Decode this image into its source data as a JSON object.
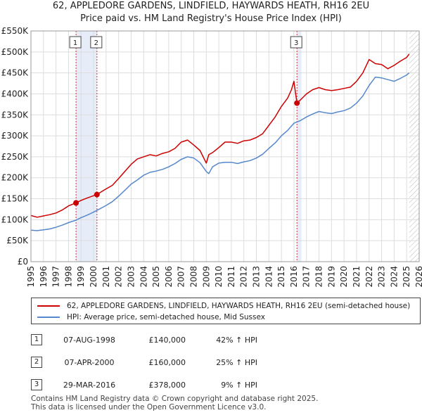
{
  "chart_data": {
    "type": "line",
    "title": "62, APPLEDORE GARDENS, LINDFIELD, HAYWARDS HEATH, RH16 2EU",
    "subtitle": "Price paid vs. HM Land Registry's House Price Index (HPI)",
    "xlabel": "",
    "ylabel": "",
    "xlim": [
      1995,
      2026
    ],
    "ylim": [
      0,
      550000
    ],
    "x_ticks": [
      1995,
      1996,
      1997,
      1998,
      1999,
      2000,
      2001,
      2002,
      2003,
      2004,
      2005,
      2006,
      2007,
      2008,
      2009,
      2010,
      2011,
      2012,
      2013,
      2014,
      2015,
      2016,
      2017,
      2018,
      2019,
      2020,
      2021,
      2022,
      2023,
      2024,
      2025,
      2026
    ],
    "x_tick_labels": [
      "1995",
      "1996",
      "1997",
      "1998",
      "1999",
      "2000",
      "2001",
      "2002",
      "2003",
      "2004",
      "2005",
      "2006",
      "2007",
      "2008",
      "2009",
      "2010",
      "2011",
      "2012",
      "2013",
      "2014",
      "2015",
      "2016",
      "2017",
      "2018",
      "2019",
      "2020",
      "2021",
      "2022",
      "2023",
      "2024",
      "2025",
      "2026"
    ],
    "y_ticks": [
      0,
      50000,
      100000,
      150000,
      200000,
      250000,
      300000,
      350000,
      400000,
      450000,
      500000,
      550000
    ],
    "y_tick_labels": [
      "£0",
      "£50K",
      "£100K",
      "£150K",
      "£200K",
      "£250K",
      "£300K",
      "£350K",
      "£400K",
      "£450K",
      "£500K",
      "£550K"
    ],
    "grid": true,
    "series": [
      {
        "name": "62, APPLEDORE GARDENS, LINDFIELD, HAYWARDS HEATH, RH16 2EU (semi-detached house)",
        "color": "#cc0000",
        "x": [
          1995.0,
          1995.5,
          1996.0,
          1996.5,
          1997.0,
          1997.5,
          1998.0,
          1998.6,
          1999.0,
          1999.5,
          2000.27,
          2000.8,
          2001.5,
          2002.0,
          2002.5,
          2003.0,
          2003.5,
          2004.0,
          2004.5,
          2005.0,
          2005.5,
          2006.0,
          2006.5,
          2007.0,
          2007.5,
          2008.0,
          2008.5,
          2009.0,
          2009.2,
          2009.5,
          2010.0,
          2010.5,
          2011.0,
          2011.5,
          2012.0,
          2012.5,
          2013.0,
          2013.5,
          2014.0,
          2014.5,
          2015.0,
          2015.5,
          2015.8,
          2016.0,
          2016.24,
          2016.5,
          2017.0,
          2017.5,
          2018.0,
          2018.5,
          2019.0,
          2019.5,
          2020.0,
          2020.5,
          2021.0,
          2021.5,
          2022.0,
          2022.5,
          2023.0,
          2023.5,
          2024.0,
          2024.5,
          2025.0,
          2025.2
        ],
        "values": [
          110000,
          106000,
          109000,
          112000,
          116000,
          123000,
          133000,
          140000,
          146000,
          152000,
          160000,
          170000,
          182000,
          198000,
          215000,
          232000,
          245000,
          250000,
          255000,
          252000,
          258000,
          262000,
          270000,
          285000,
          290000,
          278000,
          265000,
          235000,
          255000,
          260000,
          272000,
          285000,
          285000,
          282000,
          288000,
          290000,
          296000,
          305000,
          325000,
          345000,
          370000,
          390000,
          410000,
          430000,
          378000,
          385000,
          400000,
          410000,
          415000,
          410000,
          408000,
          410000,
          413000,
          416000,
          430000,
          450000,
          482000,
          472000,
          470000,
          460000,
          468000,
          478000,
          487000,
          495000
        ]
      },
      {
        "name": "HPI: Average price, semi-detached house, Mid Sussex",
        "color": "#5588cc",
        "x": [
          1995.0,
          1995.5,
          1996.0,
          1996.5,
          1997.0,
          1997.5,
          1998.0,
          1998.6,
          1999.0,
          1999.5,
          2000.0,
          2000.5,
          2001.0,
          2001.5,
          2002.0,
          2002.5,
          2003.0,
          2003.5,
          2004.0,
          2004.5,
          2005.0,
          2005.5,
          2006.0,
          2006.5,
          2007.0,
          2007.5,
          2008.0,
          2008.5,
          2009.0,
          2009.2,
          2009.5,
          2010.0,
          2010.5,
          2011.0,
          2011.5,
          2012.0,
          2012.5,
          2013.0,
          2013.5,
          2014.0,
          2014.5,
          2015.0,
          2015.5,
          2016.0,
          2016.5,
          2017.0,
          2017.5,
          2018.0,
          2018.5,
          2019.0,
          2019.5,
          2020.0,
          2020.5,
          2021.0,
          2021.5,
          2022.0,
          2022.5,
          2023.0,
          2023.5,
          2024.0,
          2024.5,
          2025.0,
          2025.2
        ],
        "values": [
          75000,
          74000,
          76000,
          78000,
          82000,
          87000,
          93000,
          99000,
          105000,
          111000,
          118000,
          126000,
          134000,
          143000,
          156000,
          170000,
          185000,
          195000,
          206000,
          213000,
          216000,
          220000,
          226000,
          234000,
          244000,
          250000,
          247000,
          236000,
          215000,
          210000,
          226000,
          235000,
          237000,
          237000,
          234000,
          238000,
          241000,
          247000,
          256000,
          270000,
          283000,
          300000,
          313000,
          330000,
          336000,
          345000,
          352000,
          358000,
          355000,
          353000,
          357000,
          360000,
          366000,
          378000,
          395000,
          420000,
          440000,
          438000,
          434000,
          430000,
          437000,
          445000,
          450000
        ]
      }
    ],
    "markers": [
      {
        "label": "1",
        "x": 1998.6,
        "value": 140000
      },
      {
        "label": "2",
        "x": 2000.27,
        "value": 160000
      },
      {
        "label": "3",
        "x": 2016.24,
        "value": 378000
      }
    ],
    "shaded_ranges": [
      [
        1998.6,
        2000.27
      ],
      [
        2016.24,
        2016.6
      ]
    ],
    "hatched_range": [
      2025.2,
      2026
    ]
  },
  "legend": {
    "property_label": "62, APPLEDORE GARDENS, LINDFIELD, HAYWARDS HEATH, RH16 2EU (semi-detached house)",
    "hpi_label": "HPI: Average price, semi-detached house, Mid Sussex"
  },
  "sales": [
    {
      "num": "1",
      "date": "07-AUG-1998",
      "price": "£140,000",
      "hpi": "42% ↑ HPI"
    },
    {
      "num": "2",
      "date": "07-APR-2000",
      "price": "£160,000",
      "hpi": "25% ↑ HPI"
    },
    {
      "num": "3",
      "date": "29-MAR-2016",
      "price": "£378,000",
      "hpi": "9% ↑ HPI"
    }
  ],
  "footer": {
    "line1": "Contains HM Land Registry data © Crown copyright and database right 2025.",
    "line2": "This data is licensed under the Open Government Licence v3.0."
  }
}
